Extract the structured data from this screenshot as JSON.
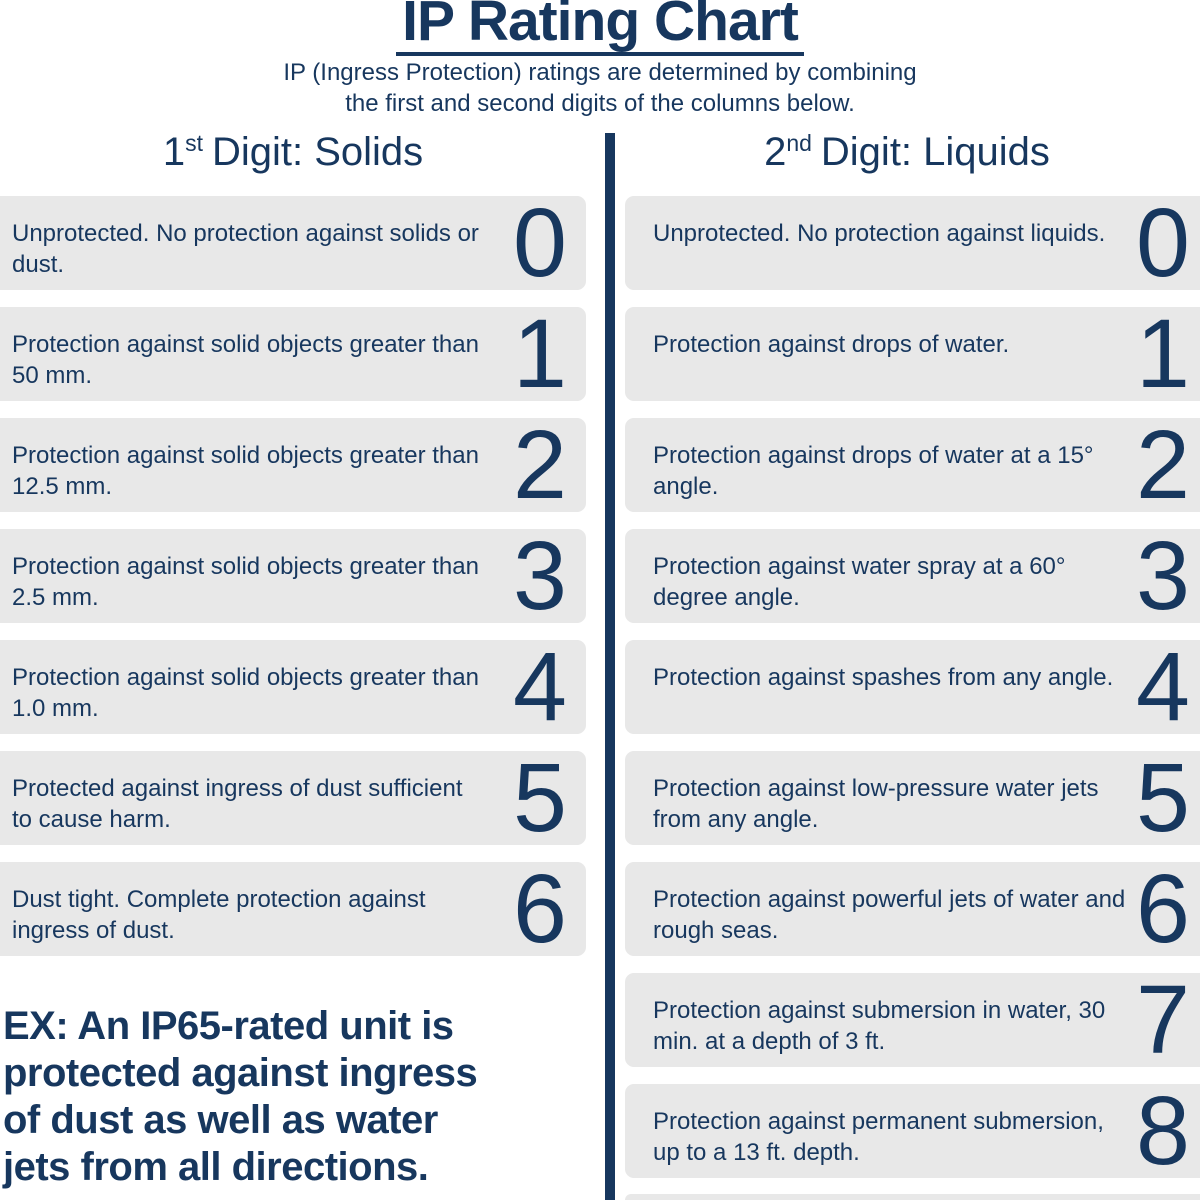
{
  "colors": {
    "navy": "#17375e",
    "row_bg": "#e8e8e8",
    "page_bg": "#ffffff"
  },
  "header": {
    "title": "IP Rating Chart",
    "subtitle_line1": "IP (Ingress Protection) ratings are determined by combining",
    "subtitle_line2": "the first and second digits of the columns below."
  },
  "columns": [
    {
      "id": "solids",
      "heading_number": "1",
      "heading_superscript": "st",
      "heading_label": "Digit: Solids",
      "rows": [
        {
          "digit": "0",
          "text": "Unprotected. No protection against solids or dust."
        },
        {
          "digit": "1",
          "text": "Protection against solid objects greater than 50 mm."
        },
        {
          "digit": "2",
          "text": "Protection against solid objects greater than 12.5 mm."
        },
        {
          "digit": "3",
          "text": "Protection against solid objects greater than 2.5 mm."
        },
        {
          "digit": "4",
          "text": "Protection against solid objects greater than 1.0 mm."
        },
        {
          "digit": "5",
          "text": "Protected against ingress of dust sufficient to cause harm."
        },
        {
          "digit": "6",
          "text": "Dust tight. Complete protection against ingress of dust."
        }
      ]
    },
    {
      "id": "liquids",
      "heading_number": "2",
      "heading_superscript": "nd",
      "heading_label": "Digit: Liquids",
      "rows": [
        {
          "digit": "0",
          "text": "Unprotected. No protection against liquids."
        },
        {
          "digit": "1",
          "text": "Protection against drops of water."
        },
        {
          "digit": "2",
          "text": "Protection against drops of water at a 15° angle."
        },
        {
          "digit": "3",
          "text": "Protection against water spray at a 60° degree angle."
        },
        {
          "digit": "4",
          "text": "Protection against spashes from any angle."
        },
        {
          "digit": "5",
          "text": "Protection against low-pressure water jets from any angle."
        },
        {
          "digit": "6",
          "text": "Protection against powerful jets of water and rough seas."
        },
        {
          "digit": "7",
          "text": "Protection against submersion in water, 30 min. at a depth of 3 ft."
        },
        {
          "digit": "8",
          "text": "Protection against permanent submersion, up to a 13 ft. depth."
        }
      ]
    }
  ],
  "example": {
    "lines": [
      "EX: An IP65-rated unit is",
      "protected against ingress",
      "of dust as well as water",
      "jets from all directions."
    ]
  }
}
